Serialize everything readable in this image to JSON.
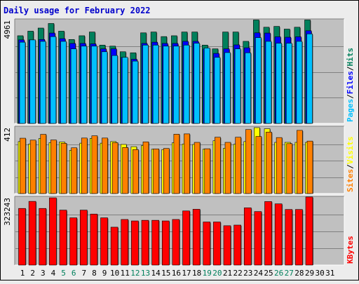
{
  "title": "Daily usage for February 2022",
  "colors": {
    "background": "#ececec",
    "plot_background": "#c0c0c0",
    "title": "#0000cc",
    "hits": "#00805c",
    "files": "#0000ff",
    "pages": "#00c0ff",
    "visits": "#ffff00",
    "sites": "#ff8000",
    "kbytes": "#ff0000",
    "weekend_label": "#00805c",
    "weekday_label": "#000000"
  },
  "chart_data": [
    {
      "type": "bar",
      "name": "hits-files-pages",
      "y_max_label": "4961",
      "ymax": 4961,
      "axis_label_parts": [
        "Pages",
        "/",
        "Files",
        "/",
        "Hits"
      ],
      "series": [
        {
          "name": "Hits",
          "values": [
            4220,
            4440,
            4590,
            4810,
            4440,
            4040,
            4220,
            4400,
            3770,
            3720,
            3450,
            3400,
            4360,
            4400,
            4180,
            4220,
            4400,
            4400,
            3770,
            3590,
            4400,
            4400,
            3950,
            4980,
            4630,
            4670,
            4540,
            4630,
            4980
          ]
        },
        {
          "name": "Files",
          "values": [
            4020,
            4020,
            4040,
            4350,
            4080,
            3850,
            3850,
            3830,
            3590,
            3590,
            3180,
            3090,
            3850,
            3910,
            3850,
            3850,
            3950,
            3950,
            3580,
            3370,
            3590,
            3780,
            3640,
            4360,
            4350,
            4170,
            4150,
            4170,
            4460
          ]
        },
        {
          "name": "Pages",
          "values": [
            3910,
            4020,
            3950,
            4180,
            3950,
            3590,
            3720,
            3720,
            3450,
            3270,
            3180,
            3000,
            3770,
            3770,
            3720,
            3720,
            3770,
            3860,
            3630,
            3180,
            3410,
            3590,
            3400,
            4130,
            3950,
            3860,
            3860,
            3950,
            4310
          ]
        }
      ]
    },
    {
      "type": "bar",
      "name": "visits-sites",
      "y_max_label": "412",
      "ymax": 412,
      "axis_label_parts": [
        "Sites",
        "/",
        "Visits"
      ],
      "series": [
        {
          "name": "Visits",
          "values": [
            325,
            310,
            344,
            318,
            322,
            270,
            315,
            345,
            315,
            325,
            307,
            293,
            300,
            277,
            275,
            317,
            310,
            307,
            277,
            330,
            283,
            308,
            325,
            412,
            405,
            320,
            320,
            320,
            320
          ]
        },
        {
          "name": "Sites",
          "values": [
            346,
            334,
            370,
            335,
            314,
            286,
            347,
            361,
            347,
            318,
            288,
            275,
            323,
            279,
            282,
            371,
            373,
            320,
            280,
            352,
            320,
            352,
            400,
            357,
            384,
            350,
            312,
            395,
            328
          ]
        }
      ]
    },
    {
      "type": "bar",
      "name": "kbytes",
      "y_max_label": "323243",
      "ymax": 323243,
      "axis_label_parts": [
        "KBytes"
      ],
      "series": [
        {
          "name": "KBytes",
          "values": [
            272000,
            306000,
            272000,
            323000,
            264000,
            227000,
            264000,
            245000,
            227000,
            182000,
            219000,
            212000,
            215000,
            215000,
            212000,
            219000,
            260000,
            268000,
            207000,
            207000,
            189000,
            192000,
            275000,
            257000,
            305000,
            294000,
            267000,
            267000,
            327000
          ]
        }
      ]
    }
  ],
  "days": [
    "1",
    "2",
    "3",
    "4",
    "5",
    "6",
    "7",
    "8",
    "9",
    "10",
    "11",
    "12",
    "13",
    "14",
    "15",
    "16",
    "17",
    "18",
    "19",
    "20",
    "21",
    "22",
    "23",
    "24",
    "25",
    "26",
    "27",
    "28",
    "29",
    "30",
    "31"
  ],
  "weekend_days": [
    5,
    6,
    12,
    13,
    19,
    20,
    26,
    27
  ]
}
